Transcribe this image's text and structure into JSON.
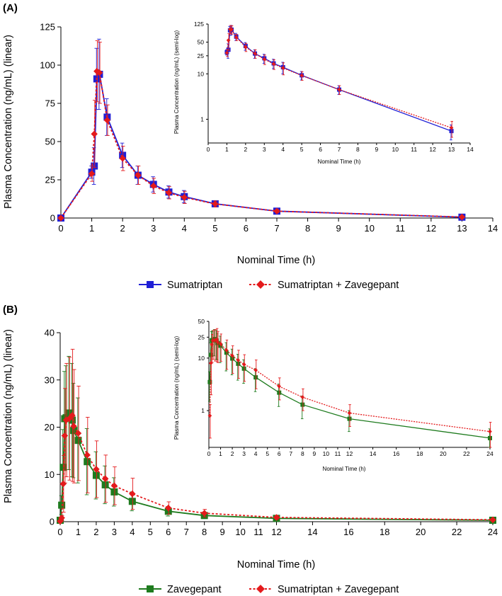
{
  "chart_data": [
    {
      "panel": "(A)",
      "type": "line",
      "xlabel": "Nominal Time (h)",
      "ylabel": "Plasma Concentration (ng/mL) (linear)",
      "xlim": [
        0,
        14
      ],
      "ylim": [
        0,
        125
      ],
      "xticks": [
        "0",
        "1",
        "2",
        "3",
        "4",
        "5",
        "6",
        "7",
        "8",
        "9",
        "10",
        "11",
        "12",
        "13",
        "14"
      ],
      "yticks": [
        "0",
        "25",
        "50",
        "75",
        "100",
        "125"
      ],
      "series": [
        {
          "name": "Sumatriptan",
          "color": "#1f1fd6",
          "marker": "square",
          "dash": false,
          "x": [
            0,
            1,
            1.083,
            1.167,
            1.25,
            1.5,
            2,
            2.5,
            3,
            3.5,
            4,
            5,
            7,
            13
          ],
          "values": [
            0,
            30,
            34,
            91,
            94,
            66,
            41,
            28,
            22,
            17,
            14,
            9.3,
            4.5,
            0.55
          ],
          "err": [
            0,
            4,
            12,
            20,
            23,
            12,
            8,
            6,
            5,
            4,
            4,
            2,
            1,
            0.2
          ]
        },
        {
          "name": "Sumatriptan + Zavegepant",
          "color": "#e41a1c",
          "marker": "diamond",
          "dash": true,
          "x": [
            0,
            1,
            1.083,
            1.167,
            1.25,
            1.5,
            2,
            2.5,
            3,
            3.5,
            4,
            5,
            7,
            13
          ],
          "values": [
            0,
            29,
            55,
            96,
            95,
            64,
            39,
            28,
            21,
            16.5,
            13.5,
            9.2,
            4.5,
            0.65
          ],
          "err": [
            0,
            5,
            22,
            20,
            20,
            10,
            8,
            6,
            5,
            4,
            4,
            2,
            1,
            0.25
          ]
        }
      ],
      "inset": {
        "type": "line",
        "yscale": "log",
        "xlabel": "Nominal Time (h)",
        "ylabel": "Plasma Concentration (ng/mL) (semi-log)",
        "xlim": [
          0,
          14
        ],
        "ylim": [
          0.3,
          125
        ],
        "xticks": [
          "0",
          "1",
          "2",
          "3",
          "4",
          "5",
          "6",
          "7",
          "8",
          "9",
          "10",
          "11",
          "12",
          "13",
          "14"
        ],
        "yticks": [
          {
            "value": 1,
            "label": "1"
          },
          {
            "value": 10,
            "label": "10"
          },
          {
            "value": 25,
            "label": "25"
          },
          {
            "value": 50,
            "label": "50"
          },
          {
            "value": 125,
            "label": "125"
          }
        ],
        "x_start_index": 1
      }
    },
    {
      "panel": "(B)",
      "type": "line",
      "xlabel": "Nominal Time (h)",
      "ylabel": "Plasma Concentration (ng/mL) (linear)",
      "xlim": [
        0,
        24
      ],
      "ylim": [
        0,
        40
      ],
      "xticks": [
        "0",
        "1",
        "2",
        "3",
        "4",
        "5",
        "6",
        "7",
        "8",
        "9",
        "10",
        "11",
        "12",
        "14",
        "16",
        "18",
        "20",
        "22",
        "24"
      ],
      "yticks": [
        "0",
        "10",
        "20",
        "30",
        "40"
      ],
      "series": [
        {
          "name": "Zavegepant",
          "color": "#1e7b1e",
          "marker": "square",
          "dash": false,
          "x": [
            0,
            0.083,
            0.167,
            0.25,
            0.333,
            0.5,
            0.667,
            0.75,
            1,
            1.5,
            2,
            2.5,
            3,
            4,
            6,
            8,
            12,
            24
          ],
          "values": [
            0.3,
            3.5,
            11.5,
            21.8,
            22,
            23,
            21.5,
            19.3,
            17.2,
            12.7,
            9.8,
            7.8,
            6.3,
            4.3,
            2.2,
            1.3,
            0.7,
            0.3
          ],
          "err": [
            0.2,
            2,
            8,
            10,
            11,
            12,
            12,
            10,
            9,
            7,
            5,
            4,
            3,
            2,
            1,
            0.6,
            0.3,
            0.15
          ]
        },
        {
          "name": "Sumatriptan + Zavegepant",
          "color": "#e41a1c",
          "marker": "diamond",
          "dash": true,
          "x": [
            0,
            0.083,
            0.167,
            0.25,
            0.333,
            0.5,
            0.667,
            0.75,
            1,
            1.5,
            2,
            2.5,
            3,
            4,
            6,
            8,
            12,
            24
          ],
          "values": [
            0.1,
            0.8,
            8,
            18.2,
            21.5,
            21.8,
            22.5,
            20.2,
            18.7,
            14.1,
            11.1,
            9.1,
            7.6,
            5.9,
            2.9,
            1.8,
            0.9,
            0.4
          ],
          "err": [
            0.1,
            0.5,
            6,
            10,
            12,
            13,
            14,
            12,
            10,
            8,
            6,
            5,
            4,
            3.3,
            1.3,
            0.8,
            0.4,
            0.2
          ]
        }
      ],
      "inset": {
        "type": "line",
        "yscale": "log",
        "xlabel": "Nominal Time (h)",
        "ylabel": "Plasma Concentration (ng/mL) (semi-log)",
        "xlim": [
          0,
          24
        ],
        "ylim": [
          0.2,
          50
        ],
        "xticks": [
          "0",
          "1",
          "2",
          "3",
          "4",
          "5",
          "6",
          "7",
          "8",
          "9",
          "10",
          "11",
          "12",
          "14",
          "16",
          "18",
          "20",
          "22",
          "24"
        ],
        "yticks": [
          {
            "value": 1,
            "label": "1"
          },
          {
            "value": 10,
            "label": "10"
          },
          {
            "value": 25,
            "label": "25"
          },
          {
            "value": 50,
            "label": "50"
          }
        ],
        "x_start_index": 1
      }
    }
  ]
}
